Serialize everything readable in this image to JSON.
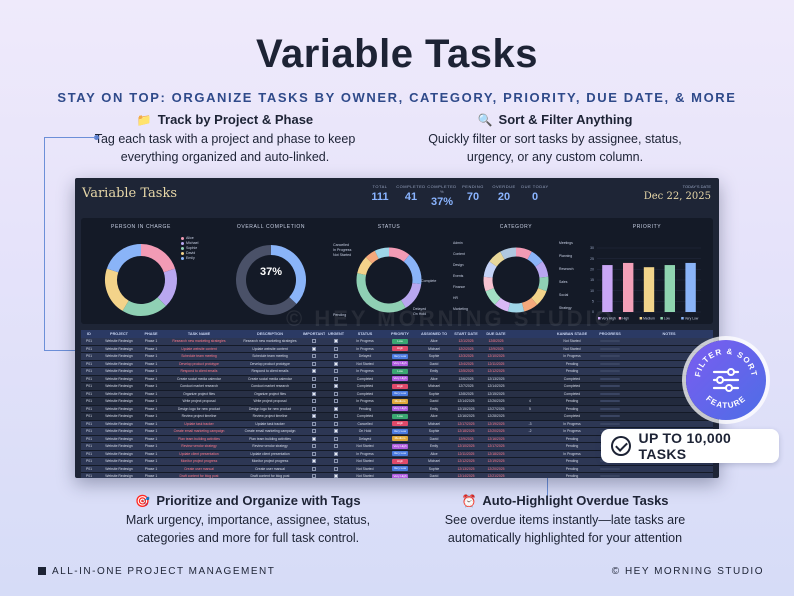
{
  "title": "Variable Tasks",
  "subtitle": "STAY ON TOP: ORGANIZE TASKS BY OWNER, CATEGORY, PRIORITY, DUE DATE, & MORE",
  "features": [
    {
      "icon": "folder-icon",
      "heading": "Track by Project & Phase",
      "body": "Tag each task with a project and phase to keep everything organized and auto-linked."
    },
    {
      "icon": "search-icon",
      "heading": "Sort & Filter Anything",
      "body": "Quickly filter or sort tasks by assignee, status, urgency, or any custom column."
    },
    {
      "icon": "target-icon",
      "heading": "Prioritize and Organize with Tags",
      "body": "Mark urgency, importance, assignee, status, categories and more for full task control."
    },
    {
      "icon": "alarm-clock-icon",
      "heading": "Auto-Highlight Overdue Tasks",
      "body": "See overdue items instantly—late tasks are automatically highlighted for your attention"
    }
  ],
  "dashboard": {
    "title": "Variable Tasks",
    "stats": [
      {
        "label": "TOTAL",
        "value": "111"
      },
      {
        "label": "COMPLETED",
        "value": "41"
      },
      {
        "label": "COMPLETED %",
        "value": "37%"
      },
      {
        "label": "PENDING",
        "value": "70"
      },
      {
        "label": "OVERDUE",
        "value": "20"
      },
      {
        "label": "DUE TODAY",
        "value": "0"
      }
    ],
    "today_label": "TODAY'S DATE",
    "today_value": "Dec 22, 2025",
    "watermark": "© HEY MORNING STUDIO",
    "charts": {
      "person": {
        "title": "PERSON IN CHARGE",
        "legend": [
          "Alice",
          "Michael",
          "Sophie",
          "David",
          "Emily"
        ],
        "values": [
          22,
          20,
          23,
          24,
          22
        ],
        "colors": [
          "#f29bb5",
          "#b9a7f0",
          "#8fd0b4",
          "#f3d38a",
          "#8ab4f8"
        ]
      },
      "completion": {
        "title": "OVERALL COMPLETION",
        "percent_label": "37%",
        "percent": 37
      },
      "status": {
        "title": "STATUS",
        "labels": [
          "Cancelled",
          "In Progress",
          "Not Started",
          "Complete",
          "Delayed",
          "On Hold",
          "Pending"
        ],
        "values": [
          12,
          18,
          16,
          41,
          10,
          6,
          8
        ]
      },
      "category": {
        "title": "CATEGORY",
        "labels": [
          "Admin",
          "Content",
          "Design",
          "Events",
          "Finance",
          "HR",
          "Marketing",
          "Meetings",
          "Planning",
          "Research",
          "Sales",
          "Social",
          "Strategy"
        ],
        "values": [
          9,
          8,
          9,
          8,
          9,
          8,
          9,
          8,
          9,
          8,
          9,
          8,
          9
        ]
      },
      "priority": {
        "title": "PRIORITY",
        "labels": [
          "Very High",
          "High",
          "Medium",
          "Low",
          "Very Low"
        ],
        "values": [
          22,
          23,
          21,
          22,
          23
        ],
        "ylim": [
          0,
          30
        ],
        "ticks": [
          "0",
          "5",
          "10",
          "15",
          "20",
          "25",
          "30"
        ],
        "colors": [
          "#c9a6f5",
          "#f3a0b8",
          "#f2d48a",
          "#8fd4b0",
          "#8ab4f8"
        ]
      }
    },
    "table": {
      "headers": [
        "ID",
        "PROJECT",
        "PHASE",
        "TASK NAME",
        "DESCRIPTION",
        "IMPORTANT",
        "URGENT",
        "STATUS",
        "PRIORITY",
        "ASSIGNED TO",
        "START DATE",
        "DUE DATE",
        "",
        "KANBAN STAGE",
        "PROGRESS",
        "NOTES"
      ],
      "rows": [
        {
          "id": "P01",
          "project": "Website Redesign",
          "phase": "Phase 1",
          "task": "Research new marketing strategies",
          "desc": "Research new marketing strategies",
          "status": "In Progress",
          "priority": "Low",
          "assignee": "Alice",
          "start": "12/1/2025",
          "due": "12/8/2025",
          "flag": "",
          "kanban": "Not Started",
          "overdue": true
        },
        {
          "id": "P01",
          "project": "Website Redesign",
          "phase": "Phase 1",
          "task": "Update website content",
          "desc": "Update website content",
          "status": "In Progress",
          "priority": "High",
          "assignee": "Michael",
          "start": "12/2/2025",
          "due": "12/9/2025",
          "flag": "",
          "kanban": "Not Started",
          "overdue": true
        },
        {
          "id": "P01",
          "project": "Website Redesign",
          "phase": "Phase 1",
          "task": "Schedule team meeting",
          "desc": "Schedule team meeting",
          "status": "Delayed",
          "priority": "Very Low",
          "assignee": "Sophie",
          "start": "12/3/2025",
          "due": "12/10/2025",
          "flag": "",
          "kanban": "In Progress",
          "overdue": true
        },
        {
          "id": "P01",
          "project": "Website Redesign",
          "phase": "Phase 1",
          "task": "Develop product prototype",
          "desc": "Develop product prototype",
          "status": "Not Started",
          "priority": "Very High",
          "assignee": "David",
          "start": "12/4/2025",
          "due": "12/11/2025",
          "flag": "",
          "kanban": "Pending",
          "overdue": true
        },
        {
          "id": "P01",
          "project": "Website Redesign",
          "phase": "Phase 1",
          "task": "Respond to client emails",
          "desc": "Respond to client emails",
          "status": "In Progress",
          "priority": "Low",
          "assignee": "Emily",
          "start": "12/5/2025",
          "due": "12/12/2025",
          "flag": "",
          "kanban": "Pending",
          "overdue": true
        },
        {
          "id": "P01",
          "project": "Website Redesign",
          "phase": "Phase 1",
          "task": "Create social media calendar",
          "desc": "Create social media calendar",
          "status": "Completed",
          "priority": "Very High",
          "assignee": "Alice",
          "start": "12/6/2025",
          "due": "12/13/2025",
          "flag": "",
          "kanban": "Completed",
          "overdue": false
        },
        {
          "id": "P01",
          "project": "Website Redesign",
          "phase": "Phase 1",
          "task": "Conduct market research",
          "desc": "Conduct market research",
          "status": "Completed",
          "priority": "High",
          "assignee": "Michael",
          "start": "12/7/2025",
          "due": "12/14/2025",
          "flag": "",
          "kanban": "Completed",
          "overdue": false
        },
        {
          "id": "P01",
          "project": "Website Redesign",
          "phase": "Phase 1",
          "task": "Organize project files",
          "desc": "Organize project files",
          "status": "Completed",
          "priority": "Very Low",
          "assignee": "Sophie",
          "start": "12/8/2025",
          "due": "12/15/2025",
          "flag": "",
          "kanban": "Completed",
          "overdue": false
        },
        {
          "id": "P01",
          "project": "Website Redesign",
          "phase": "Phase 1",
          "task": "Write project proposal",
          "desc": "Write project proposal",
          "status": "In Progress",
          "priority": "Medium",
          "assignee": "David",
          "start": "12/14/2025",
          "due": "12/26/2025",
          "flag": "4",
          "kanban": "Pending",
          "overdue": false
        },
        {
          "id": "P01",
          "project": "Website Redesign",
          "phase": "Phase 1",
          "task": "Design logo for new product",
          "desc": "Design logo for new product",
          "status": "Pending",
          "priority": "Very High",
          "assignee": "Emily",
          "start": "12/15/2025",
          "due": "12/27/2025",
          "flag": "5",
          "kanban": "Pending",
          "overdue": false
        },
        {
          "id": "P01",
          "project": "Website Redesign",
          "phase": "Phase 1",
          "task": "Review project timeline",
          "desc": "Review project timeline",
          "status": "Completed",
          "priority": "Low",
          "assignee": "Alice",
          "start": "12/16/2025",
          "due": "12/28/2025",
          "flag": "",
          "kanban": "Completed",
          "overdue": false
        },
        {
          "id": "P01",
          "project": "Website Redesign",
          "phase": "Phase 1",
          "task": "Update task tracker",
          "desc": "Update task tracker",
          "status": "Cancelled",
          "priority": "High",
          "assignee": "Michael",
          "start": "12/17/2025",
          "due": "12/19/2025",
          "flag": "-3",
          "kanban": "In Progress",
          "overdue": true
        },
        {
          "id": "P01",
          "project": "Website Redesign",
          "phase": "Phase 1",
          "task": "Create email marketing campaign",
          "desc": "Create email marketing campaign",
          "status": "On Hold",
          "priority": "Very Low",
          "assignee": "Sophie",
          "start": "12/18/2025",
          "due": "12/20/2025",
          "flag": "-2",
          "kanban": "In Progress",
          "overdue": true
        },
        {
          "id": "P01",
          "project": "Website Redesign",
          "phase": "Phase 1",
          "task": "Plan team building activities",
          "desc": "Plan team building activities",
          "status": "Delayed",
          "priority": "Medium",
          "assignee": "David",
          "start": "12/9/2025",
          "due": "12/16/2025",
          "flag": "",
          "kanban": "Pending",
          "overdue": true
        },
        {
          "id": "P01",
          "project": "Website Redesign",
          "phase": "Phase 1",
          "task": "Review vendor strategy",
          "desc": "Review vendor strategy",
          "status": "Not Started",
          "priority": "Very High",
          "assignee": "Emily",
          "start": "12/10/2025",
          "due": "12/17/2025",
          "flag": "",
          "kanban": "Pending",
          "overdue": true
        },
        {
          "id": "P01",
          "project": "Website Redesign",
          "phase": "Phase 1",
          "task": "Update client presentation",
          "desc": "Update client presentation",
          "status": "In Progress",
          "priority": "Very Low",
          "assignee": "Alice",
          "start": "12/11/2025",
          "due": "12/18/2025",
          "flag": "",
          "kanban": "In Progress",
          "overdue": true
        },
        {
          "id": "P01",
          "project": "Website Redesign",
          "phase": "Phase 1",
          "task": "Monitor project progress",
          "desc": "Monitor project progress",
          "status": "Not Started",
          "priority": "High",
          "assignee": "Michael",
          "start": "12/12/2025",
          "due": "12/19/2025",
          "flag": "",
          "kanban": "Pending",
          "overdue": true
        },
        {
          "id": "P01",
          "project": "Website Redesign",
          "phase": "Phase 1",
          "task": "Create user manual",
          "desc": "Create user manual",
          "status": "Not Started",
          "priority": "Very Low",
          "assignee": "Sophie",
          "start": "12/13/2025",
          "due": "12/20/2025",
          "flag": "",
          "kanban": "Pending",
          "overdue": true
        },
        {
          "id": "P01",
          "project": "Website Redesign",
          "phase": "Phase 1",
          "task": "Draft content for blog post",
          "desc": "Draft content for blog post",
          "status": "Not Started",
          "priority": "Very High",
          "assignee": "David",
          "start": "12/14/2025",
          "due": "12/21/2025",
          "flag": "",
          "kanban": "Pending",
          "overdue": true
        },
        {
          "id": "P01",
          "project": "Website Redesign",
          "phase": "Phase 1",
          "task": "Organize client files",
          "desc": "Organize client files",
          "status": "Cancelled",
          "priority": "Very High",
          "assignee": "Emily",
          "start": "12/22/2025",
          "due": "1/5/2026",
          "flag": "",
          "kanban": "Completed",
          "overdue": false
        },
        {
          "id": "P01",
          "project": "Website Redesign",
          "phase": "Phase 1",
          "task": "Research competitors",
          "desc": "Research competitors",
          "status": "Completed",
          "priority": "Low",
          "assignee": "Alice",
          "start": "12/23/2025",
          "due": "1/6/2026",
          "flag": "",
          "kanban": "In Progress",
          "overdue": false
        },
        {
          "id": "P01",
          "project": "Website Redesign",
          "phase": "Phase 1",
          "task": "Analyze project budget",
          "desc": "Analyze project budget",
          "status": "Not Started",
          "priority": "Medium",
          "assignee": "Michael",
          "start": "12/24/2025",
          "due": "1/7/2026",
          "flag": "",
          "kanban": "Pending",
          "overdue": false
        }
      ]
    }
  },
  "badge": {
    "text_top": "FILTER & SORT",
    "text_bottom": "FEATURE",
    "icon": "sliders-icon"
  },
  "pill": {
    "icon": "check-circle-icon",
    "text": "UP TO 10,000 TASKS"
  },
  "footer": {
    "left": "ALL-IN-ONE PROJECT MANAGEMENT",
    "right": "© HEY MORNING STUDIO"
  },
  "colors": {
    "accent": "#2f4a8a",
    "panel": "#1e2536",
    "badge": "#6a64ee",
    "connector": "#6c8fd8"
  }
}
